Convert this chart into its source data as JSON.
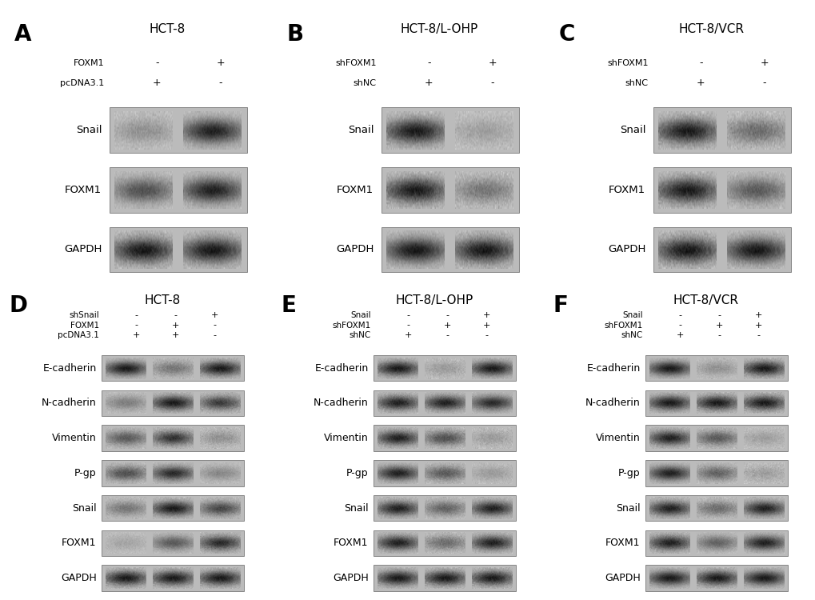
{
  "fig_width": 10.2,
  "fig_height": 7.5,
  "dpi": 100,
  "bg_color": "#ffffff",
  "panel_bg": "#bbbbbb",
  "panels_top": {
    "A": {
      "label": "A",
      "title": "HCT-8",
      "row_labels": [
        "FOXM1",
        "pcDNA3.1"
      ],
      "col_signs": [
        [
          "-",
          "+"
        ],
        [
          "+",
          "-"
        ]
      ],
      "blots": [
        "Snail",
        "FOXM1",
        "GAPDH"
      ],
      "n_lanes": 2,
      "band_data": {
        "Snail": [
          0.25,
          0.85
        ],
        "FOXM1": [
          0.6,
          0.85
        ],
        "GAPDH": [
          0.9,
          0.9
        ]
      }
    },
    "B": {
      "label": "B",
      "title": "HCT-8/L-OHP",
      "row_labels": [
        "shFOXM1",
        "shNC"
      ],
      "col_signs": [
        [
          "-",
          "+"
        ],
        [
          "+",
          "-"
        ]
      ],
      "blots": [
        "Snail",
        "FOXM1",
        "GAPDH"
      ],
      "n_lanes": 2,
      "band_data": {
        "Snail": [
          0.88,
          0.18
        ],
        "FOXM1": [
          0.88,
          0.4
        ],
        "GAPDH": [
          0.9,
          0.9
        ]
      }
    },
    "C": {
      "label": "C",
      "title": "HCT-8/VCR",
      "row_labels": [
        "shFOXM1",
        "shNC"
      ],
      "col_signs": [
        [
          "-",
          "+"
        ],
        [
          "+",
          "-"
        ]
      ],
      "blots": [
        "Snail",
        "FOXM1",
        "GAPDH"
      ],
      "n_lanes": 2,
      "band_data": {
        "Snail": [
          0.88,
          0.45
        ],
        "FOXM1": [
          0.88,
          0.55
        ],
        "GAPDH": [
          0.9,
          0.9
        ]
      }
    }
  },
  "panels_bot": {
    "D": {
      "label": "D",
      "title": "HCT-8",
      "row_labels": [
        "shSnail",
        "FOXM1",
        "pcDNA3.1"
      ],
      "col_signs": [
        [
          "-",
          "-",
          "+"
        ],
        [
          "-",
          "+",
          "-"
        ],
        [
          "+",
          "+",
          "-"
        ]
      ],
      "blots": [
        "E-cadherin",
        "N-cadherin",
        "Vimentin",
        "P-gp",
        "Snail",
        "FOXM1",
        "GAPDH"
      ],
      "n_lanes": 3,
      "band_data": {
        "E-cadherin": [
          0.88,
          0.4,
          0.88
        ],
        "N-cadherin": [
          0.35,
          0.88,
          0.7
        ],
        "Vimentin": [
          0.55,
          0.75,
          0.25
        ],
        "P-gp": [
          0.6,
          0.8,
          0.3
        ],
        "Snail": [
          0.4,
          0.88,
          0.65
        ],
        "FOXM1": [
          0.15,
          0.55,
          0.8
        ],
        "GAPDH": [
          0.88,
          0.88,
          0.88
        ]
      }
    },
    "E": {
      "label": "E",
      "title": "HCT-8/L-OHP",
      "row_labels": [
        "Snail",
        "shFOXM1",
        "shNC"
      ],
      "col_signs": [
        [
          "-",
          "-",
          "+"
        ],
        [
          "-",
          "+",
          "+"
        ],
        [
          "+",
          "-",
          "-"
        ]
      ],
      "blots": [
        "E-cadherin",
        "N-cadherin",
        "Vimentin",
        "P-gp",
        "Snail",
        "FOXM1",
        "GAPDH"
      ],
      "n_lanes": 3,
      "band_data": {
        "E-cadherin": [
          0.88,
          0.2,
          0.88
        ],
        "N-cadherin": [
          0.85,
          0.85,
          0.8
        ],
        "Vimentin": [
          0.85,
          0.6,
          0.2
        ],
        "P-gp": [
          0.85,
          0.55,
          0.2
        ],
        "Snail": [
          0.85,
          0.5,
          0.85
        ],
        "FOXM1": [
          0.85,
          0.45,
          0.85
        ],
        "GAPDH": [
          0.88,
          0.88,
          0.88
        ]
      }
    },
    "F": {
      "label": "F",
      "title": "HCT-8/VCR",
      "row_labels": [
        "Snail",
        "shFOXM1",
        "shNC"
      ],
      "col_signs": [
        [
          "-",
          "-",
          "+"
        ],
        [
          "-",
          "+",
          "+"
        ],
        [
          "+",
          "-",
          "-"
        ]
      ],
      "blots": [
        "E-cadherin",
        "N-cadherin",
        "Vimentin",
        "P-gp",
        "Snail",
        "FOXM1",
        "GAPDH"
      ],
      "n_lanes": 3,
      "band_data": {
        "E-cadherin": [
          0.88,
          0.25,
          0.88
        ],
        "N-cadherin": [
          0.88,
          0.88,
          0.88
        ],
        "Vimentin": [
          0.85,
          0.55,
          0.18
        ],
        "P-gp": [
          0.85,
          0.5,
          0.18
        ],
        "Snail": [
          0.85,
          0.45,
          0.85
        ],
        "FOXM1": [
          0.85,
          0.5,
          0.85
        ],
        "GAPDH": [
          0.88,
          0.88,
          0.88
        ]
      }
    }
  }
}
